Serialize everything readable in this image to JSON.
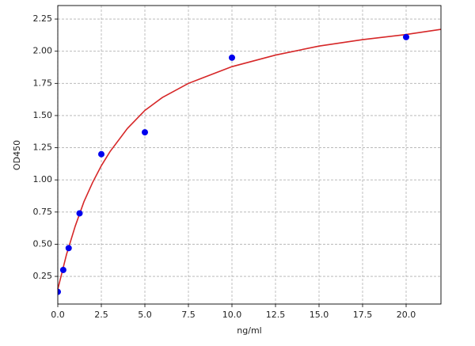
{
  "chart_data": {
    "type": "scatter",
    "xlabel": "ng/ml",
    "ylabel": "OD450",
    "xlim": [
      0,
      22
    ],
    "ylim": [
      0.035,
      2.355
    ],
    "xticks": [
      {
        "value": 0,
        "label": "0.0"
      },
      2.5,
      {
        "value": 5,
        "label": "5.0"
      },
      7.5,
      {
        "value": 10,
        "label": "10.0"
      },
      12.5,
      {
        "value": 15,
        "label": "15.0"
      },
      17.5,
      {
        "value": 20,
        "label": "20.0"
      }
    ],
    "yticks": [
      0.25,
      {
        "value": 0.5,
        "label": "0.50"
      },
      0.75,
      {
        "value": 1,
        "label": "1.00"
      },
      1.25,
      {
        "value": 1.5,
        "label": "1.50"
      },
      1.75,
      {
        "value": 2,
        "label": "2.00"
      },
      2.25
    ],
    "grid": true,
    "points": {
      "color": "#0000ee",
      "x": [
        0,
        0.3125,
        0.625,
        1.25,
        2.5,
        5,
        10,
        20
      ],
      "values": [
        0.13,
        0.3,
        0.47,
        0.74,
        1.2,
        1.37,
        1.95,
        2.11
      ]
    },
    "curve": {
      "color": "#d62728",
      "x": [
        0,
        0.5,
        1,
        1.5,
        2,
        2.5,
        3,
        4,
        5,
        6,
        7.5,
        10,
        12.5,
        15,
        17.5,
        20,
        22
      ],
      "values": [
        0.15,
        0.42,
        0.64,
        0.83,
        0.98,
        1.11,
        1.22,
        1.4,
        1.54,
        1.64,
        1.75,
        1.88,
        1.97,
        2.04,
        2.09,
        2.13,
        2.17
      ]
    }
  }
}
